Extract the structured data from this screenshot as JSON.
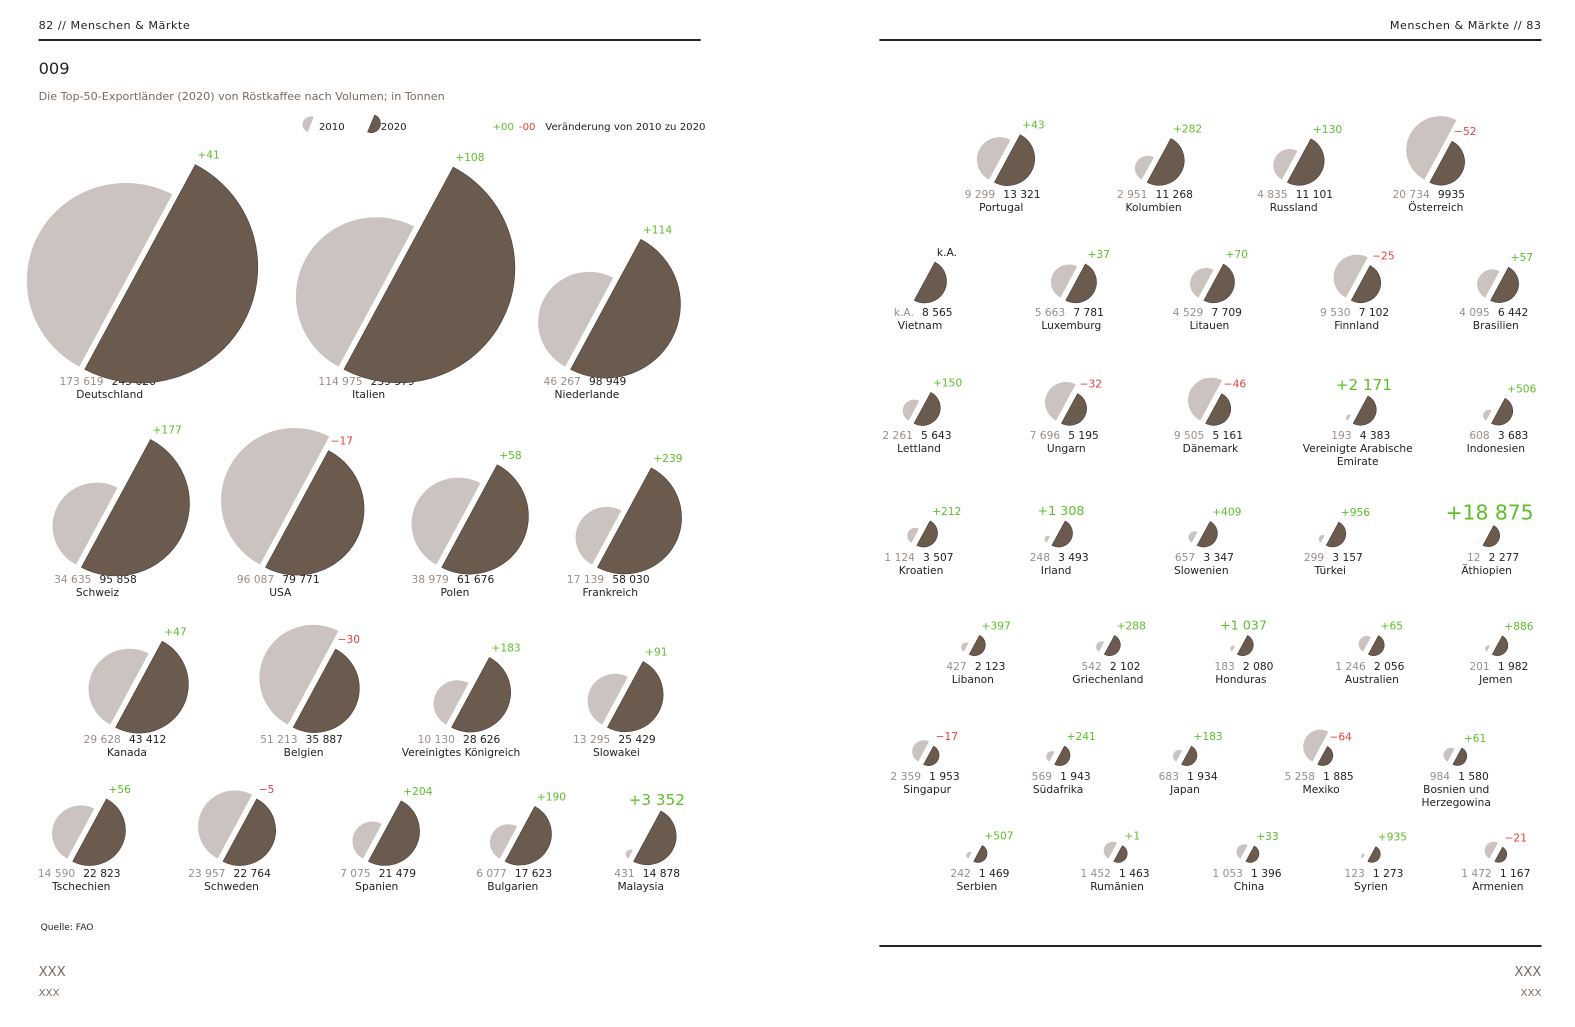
{
  "page": {
    "left_header": "82 // Menschen & Märkte",
    "right_header": "Menschen & Märkte // 83",
    "figure_number": "009",
    "source": "Quelle: FAO",
    "left_footer_title": "XXX",
    "left_footer_sub": "XXX",
    "right_footer_title": "XXX",
    "right_footer_sub": "XXX"
  },
  "chart_data": {
    "type": "split-circle",
    "title": "Die Top-50-Exportländer (2020) von Röstkaffee nach Volumen; in Tonnen",
    "legend_positive": "+00",
    "legend_negative": "-00",
    "categories": [
      "Deutschland",
      "Italien",
      "Niederlande",
      "Schweiz",
      "USA",
      "Polen",
      "Frankreich",
      "Kanada",
      "Belgien",
      "Vereinigtes Königreich",
      "Slowakei",
      "Tschechien",
      "Schweden",
      "Spanien",
      "Bulgarien",
      "Malaysia",
      "Portugal",
      "Kolumbien",
      "Russland",
      "Österreich",
      "Vietnam",
      "Luxemburg",
      "Litauen",
      "Finnland",
      "Brasilien",
      "Lettland",
      "Ungarn",
      "Dänemark",
      "Vereinigte Arabische Emirate",
      "Indonesien",
      "Kroatien",
      "Irland",
      "Slowenien",
      "Türkei",
      "Äthiopien",
      "Libanon",
      "Griechenland",
      "Honduras",
      "Australien",
      "Jemen",
      "Singapur",
      "Südafrika",
      "Japan",
      "Mexiko",
      "Bosnien und Herzegowina",
      "Serbien",
      "Rumänien",
      "China",
      "Syrien",
      "Armenien"
    ],
    "series": [
      {
        "name": "2010",
        "color": "#cac3bf",
        "values": [
          173619,
          114975,
          46267,
          34635,
          96087,
          38979,
          17139,
          29628,
          51213,
          10130,
          13295,
          14590,
          23957,
          7075,
          6077,
          431,
          9299,
          2951,
          4835,
          20734,
          null,
          5663,
          4529,
          9530,
          4095,
          2261,
          7696,
          9505,
          193,
          608,
          1124,
          248,
          657,
          299,
          12,
          427,
          542,
          183,
          1246,
          201,
          2359,
          569,
          683,
          5258,
          984,
          242,
          1452,
          1053,
          123,
          1472
        ],
        "value_labels": [
          "173 619",
          "114 975",
          "46 267",
          "34 635",
          "96 087",
          "38 979",
          "17 139",
          "29 628",
          "51 213",
          "10 130",
          "13 295",
          "14 590",
          "23 957",
          "7 075",
          "6 077",
          "431",
          "9 299",
          "2 951",
          "4 835",
          "20 734",
          "k.A.",
          "5 663",
          "4 529",
          "9 530",
          "4 095",
          "2 261",
          "7 696",
          "9 505",
          "193",
          "608",
          "1 124",
          "248",
          "657",
          "299",
          "12",
          "427",
          "542",
          "183",
          "1 246",
          "201",
          "2 359",
          "569",
          "683",
          "5 258",
          "984",
          "242",
          "1 452",
          "1 053",
          "123",
          "1 472"
        ]
      },
      {
        "name": "2020",
        "color": "#6b5b4f",
        "values": [
          245626,
          239579,
          98949,
          95858,
          79771,
          61676,
          58030,
          43412,
          35887,
          28626,
          25429,
          22823,
          22764,
          21479,
          17623,
          14878,
          13321,
          11268,
          11101,
          9935,
          8565,
          7781,
          7709,
          7102,
          6442,
          5643,
          5195,
          5161,
          4383,
          3683,
          3507,
          3493,
          3347,
          3157,
          2277,
          2123,
          2102,
          2080,
          2056,
          1982,
          1953,
          1943,
          1934,
          1885,
          1580,
          1469,
          1463,
          1396,
          1273,
          1167
        ],
        "value_labels": [
          "245 626",
          "239 579",
          "98 949",
          "95 858",
          "79 771",
          "61 676",
          "58 030",
          "43 412",
          "35 887",
          "28 626",
          "25 429",
          "22 823",
          "22 764",
          "21 479",
          "17 623",
          "14 878",
          "13 321",
          "11 268",
          "11 101",
          "9935",
          "8 565",
          "7 781",
          "7 709",
          "7 102",
          "6 442",
          "5 643",
          "5 195",
          "5 161",
          "4 383",
          "3 683",
          "3 507",
          "3 493",
          "3 347",
          "3 157",
          "2 277",
          "2 123",
          "2 102",
          "2 080",
          "2 056",
          "1 982",
          "1 953",
          "1 943",
          "1 934",
          "1 885",
          "1 580",
          "1 469",
          "1 463",
          "1 396",
          "1 273",
          "1 167"
        ]
      }
    ],
    "change": {
      "name": "Veränderung von 2010 zu 2020",
      "positive_color": "#5cbf2a",
      "negative_color": "#e8413b",
      "values": [
        41,
        108,
        114,
        177,
        -17,
        58,
        239,
        47,
        -30,
        183,
        91,
        56,
        -5,
        204,
        190,
        3352,
        43,
        282,
        130,
        -52,
        null,
        37,
        70,
        -25,
        57,
        150,
        -32,
        -46,
        2171,
        506,
        212,
        1308,
        409,
        956,
        18875,
        397,
        288,
        1037,
        65,
        886,
        -17,
        241,
        183,
        -64,
        61,
        507,
        1,
        33,
        935,
        -21
      ],
      "value_labels": [
        "+41",
        "+108",
        "+114",
        "+177",
        "−17",
        "+58",
        "+239",
        "+47",
        "−30",
        "+183",
        "+91",
        "+56",
        "−5",
        "+204",
        "+190",
        "+3 352",
        "+43",
        "+282",
        "+130",
        "−52",
        "k.A.",
        "+37",
        "+70",
        "−25",
        "+57",
        "+150",
        "−32",
        "−46",
        "+2 171",
        "+506",
        "+212",
        "+1 308",
        "+409",
        "+956",
        "+18 875",
        "+397",
        "+288",
        "+1 037",
        "+65",
        "+886",
        "−17",
        "+241",
        "+183",
        "−64",
        "+61",
        "+507",
        "+1",
        "+33",
        "+935",
        "−21"
      ]
    }
  }
}
